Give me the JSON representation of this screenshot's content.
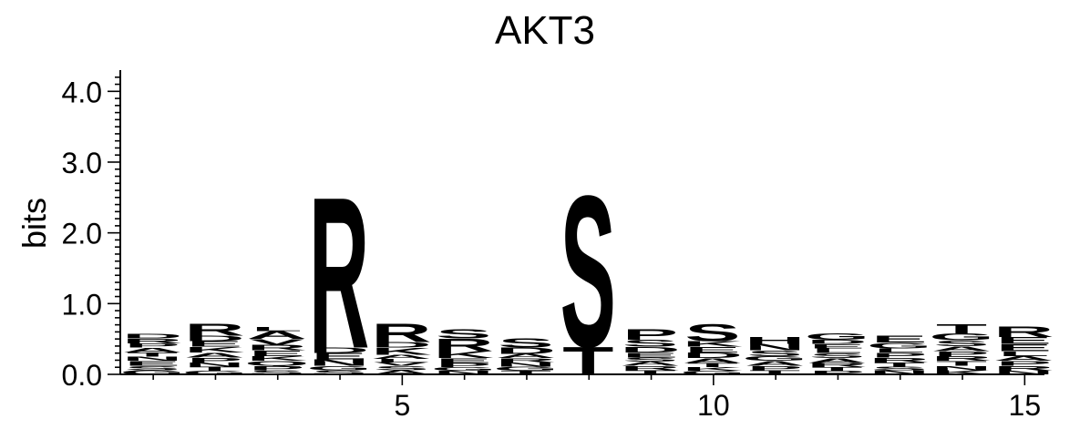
{
  "chart_data": {
    "type": "sequence-logo",
    "title": "AKT3",
    "ylabel": "bits",
    "ylim": [
      0,
      4.3
    ],
    "yticks": [
      "0.0",
      "1.0",
      "2.0",
      "3.0",
      "4.0"
    ],
    "xticks": [
      5,
      10,
      15
    ],
    "positions": [
      1,
      2,
      3,
      4,
      5,
      6,
      7,
      8,
      9,
      10,
      11,
      12,
      13,
      14,
      15
    ],
    "colors": {
      "R": "#0000ff",
      "K": "#0000ff",
      "H": "#0000ff",
      "S": "#008000",
      "T": "#008000",
      "G": "#008000",
      "Y": "#008000",
      "C": "#008000",
      "D": "#ff0000",
      "E": "#ff0000",
      "N": "#800080",
      "Q": "#800080",
      "P": "#000000",
      "A": "#000000",
      "V": "#000000",
      "L": "#000000",
      "I": "#000000",
      "M": "#000000",
      "F": "#000000",
      "W": "#000000"
    },
    "stacks": [
      [
        [
          "G",
          0.06
        ],
        [
          "S",
          0.06
        ],
        [
          "E",
          0.07
        ],
        [
          "N",
          0.06
        ],
        [
          "T",
          0.06
        ],
        [
          "A",
          0.07
        ],
        [
          "P",
          0.06
        ],
        [
          "R",
          0.07
        ],
        [
          "D",
          0.07
        ]
      ],
      [
        [
          "G",
          0.05
        ],
        [
          "T",
          0.06
        ],
        [
          "N",
          0.06
        ],
        [
          "P",
          0.07
        ],
        [
          "A",
          0.07
        ],
        [
          "K",
          0.08
        ],
        [
          "E",
          0.08
        ],
        [
          "D",
          0.08
        ],
        [
          "R",
          0.17
        ]
      ],
      [
        [
          "S",
          0.06
        ],
        [
          "P",
          0.06
        ],
        [
          "Q",
          0.07
        ],
        [
          "K",
          0.07
        ],
        [
          "E",
          0.08
        ],
        [
          "R",
          0.08
        ],
        [
          "V",
          0.08
        ],
        [
          "A",
          0.11
        ],
        [
          "L",
          0.06
        ]
      ],
      [
        [
          "S",
          0.06
        ],
        [
          "G",
          0.06
        ],
        [
          "N",
          0.09
        ],
        [
          "E",
          0.09
        ],
        [
          "D",
          0.08
        ],
        [
          "R",
          2.2
        ]
      ],
      [
        [
          "A",
          0.06
        ],
        [
          "S",
          0.06
        ],
        [
          "V",
          0.05
        ],
        [
          "L",
          0.05
        ],
        [
          "A",
          0.06
        ],
        [
          "K",
          0.1
        ],
        [
          "D",
          0.08
        ],
        [
          "R",
          0.27
        ]
      ],
      [
        [
          "N",
          0.05
        ],
        [
          "G",
          0.05
        ],
        [
          "P",
          0.06
        ],
        [
          "E",
          0.07
        ],
        [
          "K",
          0.1
        ],
        [
          "R",
          0.18
        ],
        [
          "S",
          0.14
        ]
      ],
      [
        [
          "T",
          0.05
        ],
        [
          "G",
          0.06
        ],
        [
          "N",
          0.06
        ],
        [
          "R",
          0.06
        ],
        [
          "A",
          0.06
        ],
        [
          "D",
          0.09
        ],
        [
          "S",
          0.14
        ]
      ],
      [
        [
          "T",
          0.4
        ],
        [
          "S",
          2.2
        ]
      ],
      [
        [
          "T",
          0.06
        ],
        [
          "R",
          0.06
        ],
        [
          "A",
          0.06
        ],
        [
          "S",
          0.06
        ],
        [
          "E",
          0.07
        ],
        [
          "D",
          0.08
        ],
        [
          "S",
          0.1
        ],
        [
          "P",
          0.15
        ]
      ],
      [
        [
          "G",
          0.05
        ],
        [
          "K",
          0.05
        ],
        [
          "T",
          0.06
        ],
        [
          "A",
          0.07
        ],
        [
          "D",
          0.08
        ],
        [
          "E",
          0.08
        ],
        [
          "K",
          0.08
        ],
        [
          "S",
          0.25
        ]
      ],
      [
        [
          "T",
          0.06
        ],
        [
          "P",
          0.06
        ],
        [
          "A",
          0.07
        ],
        [
          "G",
          0.07
        ],
        [
          "S",
          0.08
        ],
        [
          "N",
          0.09
        ],
        [
          "H",
          0.1
        ]
      ],
      [
        [
          "P",
          0.05
        ],
        [
          "T",
          0.05
        ],
        [
          "R",
          0.06
        ],
        [
          "A",
          0.07
        ],
        [
          "S",
          0.07
        ],
        [
          "L",
          0.07
        ],
        [
          "E",
          0.06
        ],
        [
          "D",
          0.06
        ],
        [
          "G",
          0.09
        ]
      ],
      [
        [
          "N",
          0.06
        ],
        [
          "S",
          0.05
        ],
        [
          "T",
          0.06
        ],
        [
          "R",
          0.07
        ],
        [
          "P",
          0.07
        ],
        [
          "L",
          0.06
        ],
        [
          "G",
          0.08
        ],
        [
          "E",
          0.1
        ]
      ],
      [
        [
          "K",
          0.06
        ],
        [
          "N",
          0.06
        ],
        [
          "T",
          0.07
        ],
        [
          "R",
          0.07
        ],
        [
          "P",
          0.07
        ],
        [
          "A",
          0.07
        ],
        [
          "S",
          0.08
        ],
        [
          "G",
          0.1
        ],
        [
          "T",
          0.14
        ]
      ],
      [
        [
          "N",
          0.05
        ],
        [
          "R",
          0.07
        ],
        [
          "P",
          0.07
        ],
        [
          "A",
          0.07
        ],
        [
          "L",
          0.07
        ],
        [
          "E",
          0.1
        ],
        [
          "E",
          0.1
        ],
        [
          "R",
          0.15
        ]
      ]
    ]
  }
}
